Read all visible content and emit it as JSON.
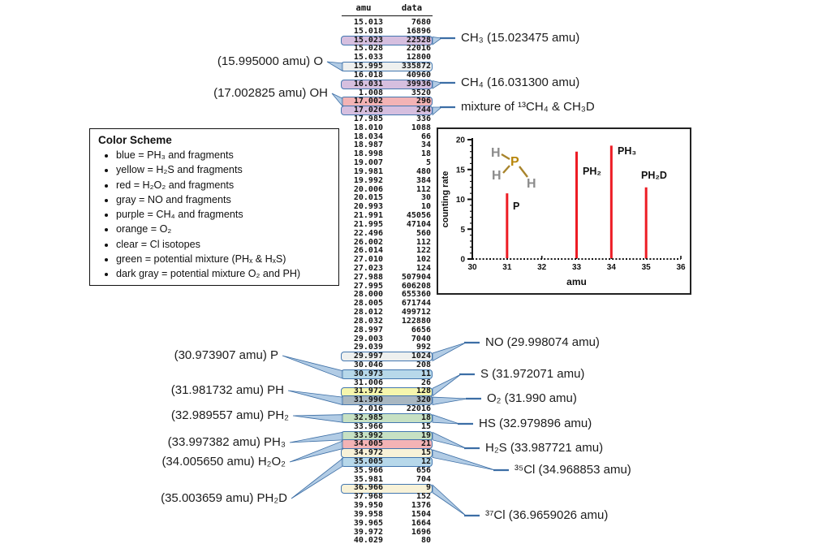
{
  "table": {
    "headers": [
      "amu",
      "data"
    ],
    "rows": [
      {
        "amu": "15.013",
        "data": "7680",
        "hl": null
      },
      {
        "amu": "15.018",
        "data": "16896",
        "hl": null
      },
      {
        "amu": "15.023",
        "data": "22528",
        "hl": "purple"
      },
      {
        "amu": "15.028",
        "data": "22016",
        "hl": null
      },
      {
        "amu": "15.033",
        "data": "12800",
        "hl": null
      },
      {
        "amu": "15.995",
        "data": "335872",
        "hl": "gray"
      },
      {
        "amu": "16.018",
        "data": "40960",
        "hl": null
      },
      {
        "amu": "16.031",
        "data": "39936",
        "hl": "purple"
      },
      {
        "amu": "1.008",
        "data": "3520",
        "hl": null
      },
      {
        "amu": "17.002",
        "data": "296",
        "hl": "red"
      },
      {
        "amu": "17.026",
        "data": "244",
        "hl": "purple"
      },
      {
        "amu": "17.985",
        "data": "336",
        "hl": null
      },
      {
        "amu": "18.010",
        "data": "1088",
        "hl": null
      },
      {
        "amu": "18.034",
        "data": "66",
        "hl": null
      },
      {
        "amu": "18.987",
        "data": "34",
        "hl": null
      },
      {
        "amu": "18.998",
        "data": "18",
        "hl": null
      },
      {
        "amu": "19.007",
        "data": "5",
        "hl": null
      },
      {
        "amu": "19.981",
        "data": "480",
        "hl": null
      },
      {
        "amu": "19.992",
        "data": "384",
        "hl": null
      },
      {
        "amu": "20.006",
        "data": "112",
        "hl": null
      },
      {
        "amu": "20.015",
        "data": "30",
        "hl": null
      },
      {
        "amu": "20.993",
        "data": "10",
        "hl": null
      },
      {
        "amu": "21.991",
        "data": "45056",
        "hl": null
      },
      {
        "amu": "21.995",
        "data": "47104",
        "hl": null
      },
      {
        "amu": "22.496",
        "data": "560",
        "hl": null
      },
      {
        "amu": "26.002",
        "data": "112",
        "hl": null
      },
      {
        "amu": "26.014",
        "data": "122",
        "hl": null
      },
      {
        "amu": "27.010",
        "data": "102",
        "hl": null
      },
      {
        "amu": "27.023",
        "data": "124",
        "hl": null
      },
      {
        "amu": "27.988",
        "data": "507904",
        "hl": null
      },
      {
        "amu": "27.995",
        "data": "606208",
        "hl": null
      },
      {
        "amu": "28.000",
        "data": "655360",
        "hl": null
      },
      {
        "amu": "28.005",
        "data": "671744",
        "hl": null
      },
      {
        "amu": "28.012",
        "data": "499712",
        "hl": null
      },
      {
        "amu": "28.032",
        "data": "122880",
        "hl": null
      },
      {
        "amu": "28.997",
        "data": "6656",
        "hl": null
      },
      {
        "amu": "29.003",
        "data": "7040",
        "hl": null
      },
      {
        "amu": "29.039",
        "data": "992",
        "hl": null
      },
      {
        "amu": "29.997",
        "data": "1024",
        "hl": "gray"
      },
      {
        "amu": "30.046",
        "data": "208",
        "hl": null
      },
      {
        "amu": "30.973",
        "data": "11",
        "hl": "blue"
      },
      {
        "amu": "31.006",
        "data": "26",
        "hl": null
      },
      {
        "amu": "31.972",
        "data": "128",
        "hl": "yellow"
      },
      {
        "amu": "31.990",
        "data": "320",
        "hl": "darkgray"
      },
      {
        "amu": "2.016",
        "data": "22016",
        "hl": null
      },
      {
        "amu": "32.985",
        "data": "18",
        "hl": "green"
      },
      {
        "amu": "33.966",
        "data": "15",
        "hl": null
      },
      {
        "amu": "33.992",
        "data": "19",
        "hl": "green"
      },
      {
        "amu": "34.005",
        "data": "21",
        "hl": "red"
      },
      {
        "amu": "34.972",
        "data": "15",
        "hl": "clear"
      },
      {
        "amu": "35.005",
        "data": "12",
        "hl": "blue"
      },
      {
        "amu": "35.966",
        "data": "656",
        "hl": null
      },
      {
        "amu": "35.981",
        "data": "704",
        "hl": null
      },
      {
        "amu": "36.966",
        "data": "9",
        "hl": "clear"
      },
      {
        "amu": "37.968",
        "data": "152",
        "hl": null
      },
      {
        "amu": "39.950",
        "data": "1376",
        "hl": null
      },
      {
        "amu": "39.958",
        "data": "1504",
        "hl": null
      },
      {
        "amu": "39.965",
        "data": "1664",
        "hl": null
      },
      {
        "amu": "39.972",
        "data": "1696",
        "hl": null
      },
      {
        "amu": "40.029",
        "data": "80",
        "hl": null
      }
    ]
  },
  "highlight_colors": {
    "purple": "#d6bfdf",
    "gray": "#eef0ef",
    "red": "#f3b3b5",
    "blue": "#b7d8ea",
    "yellow": "#f6f6ad",
    "darkgray": "#a9b7c1",
    "green": "#c7e1c3",
    "clear": "#f8f2d8"
  },
  "callout": {
    "bubble_border": "#4377b0",
    "tail_fill": "#aac6e2",
    "tail_stroke": "#3c6ea5"
  },
  "labels": {
    "left": [
      {
        "text": "(15.995000 amu) O",
        "row": "15.995"
      },
      {
        "text": "(17.002825 amu) OH",
        "row": "17.002"
      },
      {
        "text": "(30.973907 amu) P",
        "row": "30.973"
      },
      {
        "text": "(31.981732 amu) PH",
        "row": "31.990"
      },
      {
        "text": "(32.989557 amu) PH₂",
        "row": "32.985"
      },
      {
        "text": "(33.997382 amu) PH₃",
        "row": "33.992"
      },
      {
        "text": "(34.005650 amu) H₂O₂",
        "row": "34.005"
      },
      {
        "text": "(35.003659 amu) PH₂D",
        "row": "35.005"
      }
    ],
    "right": [
      {
        "text": "CH₃ (15.023475 amu)",
        "row": "15.023"
      },
      {
        "text": "CH₄ (16.031300 amu)",
        "row": "16.031"
      },
      {
        "text": "mixture of ¹³CH₄ & CH₃D",
        "row": "17.026"
      },
      {
        "text": "NO (29.998074 amu)",
        "row": "29.997"
      },
      {
        "text": "S (31.972071 amu)",
        "row": "31.972"
      },
      {
        "text": "O₂ (31.990 amu)",
        "row": "31.990"
      },
      {
        "text": "HS (32.979896 amu)",
        "row": "32.985"
      },
      {
        "text": "H₂S (33.987721 amu)",
        "row": "33.992"
      },
      {
        "text": "³⁵Cl (34.968853 amu)",
        "row": "34.972"
      },
      {
        "text": "³⁷Cl (36.9659026 amu)",
        "row": "36.966"
      }
    ]
  },
  "color_scheme": {
    "title": "Color Scheme",
    "items": [
      "blue = PH₃ and fragments",
      "yellow = H₂S and fragments",
      "red = H₂O₂ and fragments",
      "gray = NO and fragments",
      "purple = CH₄ and fragments",
      "orange = O₂",
      "clear = Cl isotopes",
      "green = potential mixture (PHₓ & HₓS)",
      "dark gray = potential mixture O₂ and PH)"
    ]
  },
  "chart_data": {
    "type": "stem",
    "x": [
      31,
      33,
      34,
      35
    ],
    "values": [
      11,
      18,
      19,
      12
    ],
    "point_labels": [
      "P",
      "PH₂",
      "PH₃",
      "PH₂D"
    ],
    "xlabel": "amu",
    "ylabel": "counting rate",
    "xlim": [
      30,
      36
    ],
    "ylim": [
      0,
      20
    ],
    "xticks": [
      30,
      31,
      32,
      33,
      34,
      35,
      36
    ],
    "yticks": [
      0,
      5,
      10,
      15,
      20
    ],
    "grid": false,
    "stem_color": "#ed1c24",
    "molecule": {
      "center_atom": "P",
      "outer_atoms": [
        "H",
        "H",
        "H"
      ],
      "atom_color_center": "#b8860b",
      "atom_color_outer": "#8c8c8c",
      "bond_color": "#a8842c"
    }
  }
}
